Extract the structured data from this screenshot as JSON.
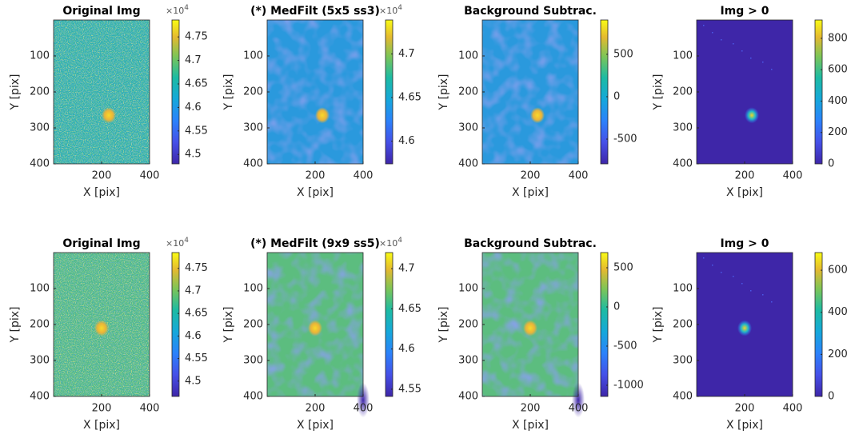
{
  "chart_data": [
    {
      "type": "image",
      "title": "Original Img",
      "xlabel": "X [pix]",
      "ylabel": "Y [pix]",
      "xlim": [
        0,
        400
      ],
      "ylim": [
        0,
        400
      ],
      "y_reversed": true,
      "xticks": [
        200,
        400
      ],
      "yticks": [
        100,
        200,
        300,
        400
      ],
      "colorbar": {
        "clim": [
          4.48,
          4.786
        ],
        "ticks": [
          4.5,
          4.55,
          4.6,
          4.65,
          4.7,
          4.75
        ],
        "multiplier": "×10",
        "multiplier_exp": "4"
      }
    },
    {
      "type": "image",
      "title": "(*) MedFilt (5x5 ss3)",
      "xlabel": "X [pix]",
      "ylabel": "Y [pix]",
      "xlim": [
        0,
        400
      ],
      "ylim": [
        0,
        400
      ],
      "y_reversed": true,
      "xticks": [
        200,
        400
      ],
      "yticks": [
        100,
        200,
        300,
        400
      ],
      "colorbar": {
        "clim": [
          4.574,
          4.739
        ],
        "ticks": [
          4.6,
          4.65,
          4.7
        ],
        "multiplier": "×10",
        "multiplier_exp": "4"
      }
    },
    {
      "type": "image",
      "title": "Background Subtrac.",
      "xlabel": "X [pix]",
      "ylabel": "Y [pix]",
      "xlim": [
        0,
        400
      ],
      "ylim": [
        0,
        400
      ],
      "y_reversed": true,
      "xticks": [
        200,
        400
      ],
      "yticks": [
        100,
        200,
        300,
        400
      ],
      "colorbar": {
        "clim": [
          -792,
          905
        ],
        "ticks": [
          -500,
          0,
          500
        ]
      }
    },
    {
      "type": "image",
      "title": "Img > 0",
      "xlabel": "X [pix]",
      "ylabel": "Y [pix]",
      "xlim": [
        0,
        400
      ],
      "ylim": [
        0,
        400
      ],
      "y_reversed": true,
      "xticks": [
        200,
        400
      ],
      "yticks": [
        100,
        200,
        300,
        400
      ],
      "colorbar": {
        "clim": [
          0,
          917
        ],
        "ticks": [
          0,
          200,
          400,
          600,
          800
        ]
      }
    },
    {
      "type": "image",
      "title": "Original Img",
      "xlabel": "X [pix]",
      "ylabel": "Y [pix]",
      "xlim": [
        0,
        400
      ],
      "ylim": [
        0,
        400
      ],
      "y_reversed": true,
      "xticks": [
        200,
        400
      ],
      "yticks": [
        100,
        200,
        300,
        400
      ],
      "colorbar": {
        "clim": [
          4.466,
          4.785
        ],
        "ticks": [
          4.5,
          4.55,
          4.6,
          4.65,
          4.7,
          4.75
        ],
        "multiplier": "×10",
        "multiplier_exp": "4"
      }
    },
    {
      "type": "image",
      "title": "(*) MedFilt (9x9 ss5)",
      "xlabel": "X [pix]",
      "ylabel": "Y [pix]",
      "xlim": [
        0,
        400
      ],
      "ylim": [
        0,
        400
      ],
      "y_reversed": true,
      "xticks": [
        200,
        400
      ],
      "yticks": [
        100,
        200,
        300,
        400
      ],
      "colorbar": {
        "clim": [
          4.541,
          4.72
        ],
        "ticks": [
          4.55,
          4.6,
          4.65,
          4.7
        ],
        "multiplier": "×10",
        "multiplier_exp": "4"
      }
    },
    {
      "type": "image",
      "title": "Background Subtrac.",
      "xlabel": "X [pix]",
      "ylabel": "Y [pix]",
      "xlim": [
        0,
        400
      ],
      "ylim": [
        0,
        400
      ],
      "y_reversed": true,
      "xticks": [
        200,
        400
      ],
      "yticks": [
        100,
        200,
        300,
        400
      ],
      "colorbar": {
        "clim": [
          -1143,
          694
        ],
        "ticks": [
          -1000,
          -500,
          0,
          500
        ]
      }
    },
    {
      "type": "image",
      "title": "Img > 0",
      "xlabel": "X [pix]",
      "ylabel": "Y [pix]",
      "xlim": [
        0,
        400
      ],
      "ylim": [
        0,
        400
      ],
      "y_reversed": true,
      "xticks": [
        200,
        400
      ],
      "yticks": [
        100,
        200,
        300,
        400
      ],
      "colorbar": {
        "clim": [
          0,
          684
        ],
        "ticks": [
          0,
          200,
          400,
          600
        ]
      }
    }
  ]
}
